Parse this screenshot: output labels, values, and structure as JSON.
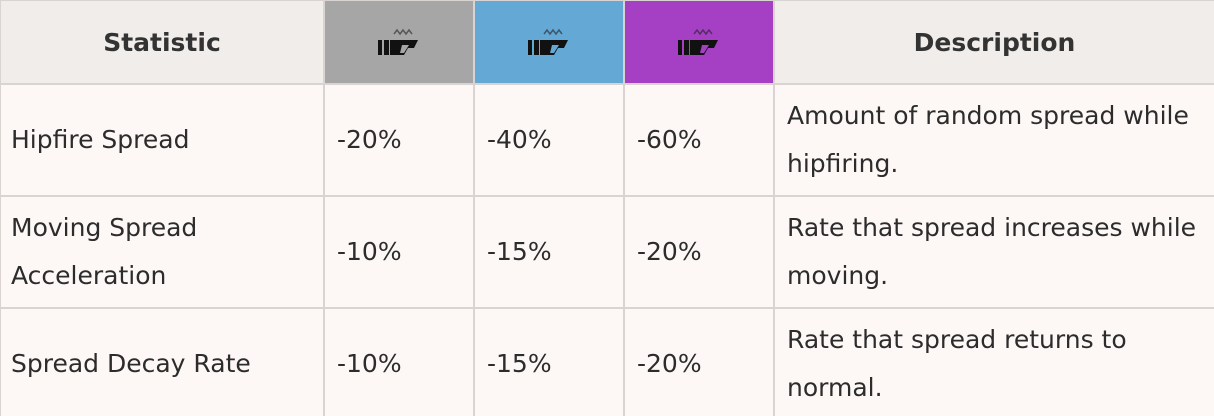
{
  "header": {
    "statistic": "Statistic",
    "description": "Description",
    "tiers": [
      {
        "icon": "attachment-tier-icon",
        "color": "#a6a6a6"
      },
      {
        "icon": "attachment-tier-icon",
        "color": "#64a8d6"
      },
      {
        "icon": "attachment-tier-icon",
        "color": "#a540c4"
      }
    ]
  },
  "rows": [
    {
      "statistic": "Hipfire Spread",
      "values": [
        "-20%",
        "-40%",
        "-60%"
      ],
      "description": "Amount of random spread while hipfiring."
    },
    {
      "statistic": "Moving Spread Acceleration",
      "values": [
        "-10%",
        "-15%",
        "-20%"
      ],
      "description": "Rate that spread increases while moving."
    },
    {
      "statistic": "Spread Decay Rate",
      "values": [
        "-10%",
        "-15%",
        "-20%"
      ],
      "description": "Rate that spread returns to normal."
    }
  ]
}
